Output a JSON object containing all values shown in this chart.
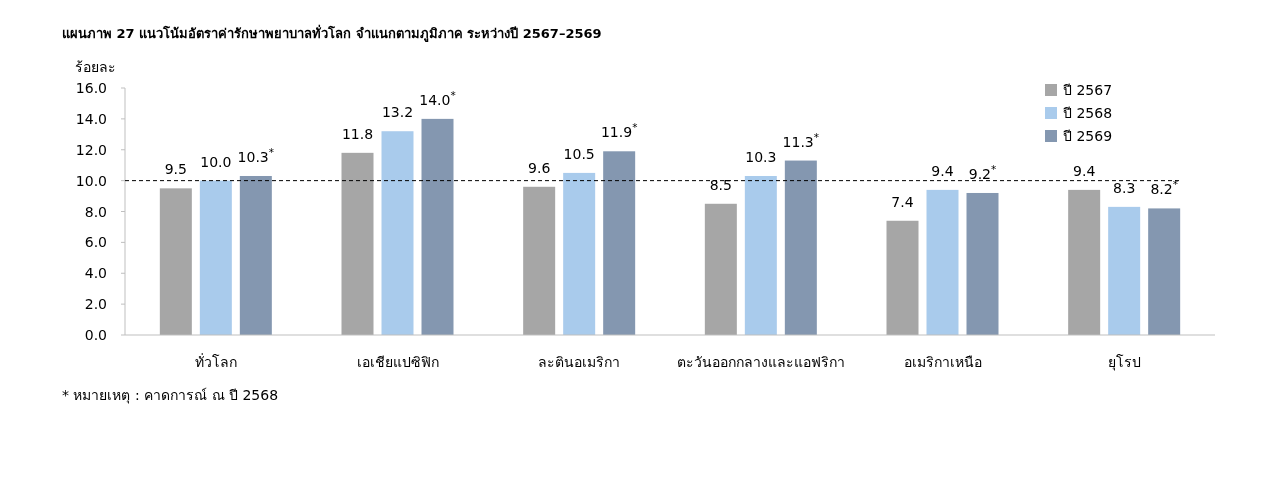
{
  "chart_data": {
    "type": "bar",
    "title": "แผนภาพ  27  แนวโน้มอัตราค่ารักษาพยาบาลทั่วโลก จำแนกตามภูมิภาค ระหว่างปี 2567–2569",
    "ylabel": "ร้อยละ",
    "categories": [
      "ทั่วโลก",
      "เอเชียแปซิฟิก",
      "ละตินอเมริกา",
      "ตะวันออกกลางและแอฟริกา",
      "อเมริกาเหนือ",
      "ยุโรป"
    ],
    "series": [
      {
        "name": "ปี 2567",
        "color": "#a6a6a6",
        "values": [
          9.5,
          11.8,
          9.6,
          8.5,
          7.4,
          9.4
        ],
        "value_labels": [
          "9.5",
          "11.8",
          "9.6",
          "8.5",
          "7.4",
          "9.4"
        ]
      },
      {
        "name": "ปี 2568",
        "color": "#a9cbec",
        "values": [
          10.0,
          13.2,
          10.5,
          10.3,
          9.4,
          8.3
        ],
        "value_labels": [
          "10.0",
          "13.2",
          "10.5",
          "10.3",
          "9.4",
          "8.3"
        ]
      },
      {
        "name": "ปี 2569",
        "color": "#8497b0",
        "values": [
          10.3,
          14.0,
          11.9,
          11.3,
          9.2,
          8.2
        ],
        "value_labels": [
          "10.3$^{*}$",
          "14.0$^{*}$",
          "11.9$^{*}$",
          "11.3$^{*}$",
          "9.2$^{*}$",
          "8.2$^{*}$"
        ]
      }
    ],
    "ylim": [
      0,
      16
    ],
    "yticks": [
      {
        "value": 0,
        "label": "0.0"
      },
      {
        "value": 2,
        "label": "2.0"
      },
      {
        "value": 4,
        "label": "4.0"
      },
      {
        "value": 6,
        "label": "6.0"
      },
      {
        "value": 8,
        "label": "8.0"
      },
      {
        "value": 10,
        "label": "10.0"
      },
      {
        "value": 12,
        "label": "12.0"
      },
      {
        "value": 14,
        "label": "14.0"
      },
      {
        "value": 16,
        "label": "16.0"
      }
    ],
    "ref_lines": [
      {
        "axis": "y",
        "value": 10,
        "line_style": "dashed",
        "color": "#000000"
      }
    ],
    "legend": "top right",
    "annotations": [
      "* หมายเหตุ : คาดการณ์ ณ ปี 2568"
    ]
  }
}
